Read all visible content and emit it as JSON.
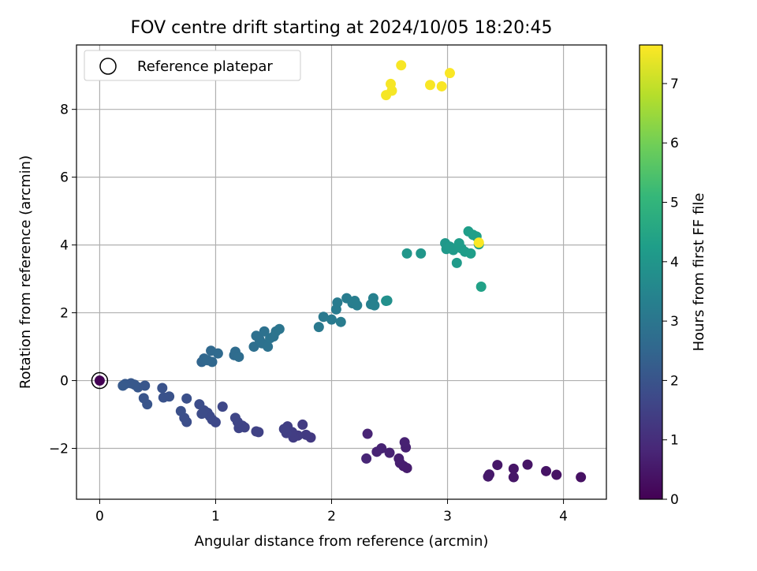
{
  "chart_data": {
    "type": "scatter",
    "title": "FOV centre drift starting at 2024/10/05 18:20:45",
    "xlabel": "Angular distance from reference (arcmin)",
    "ylabel": "Rotation from reference (arcmin)",
    "xlim": [
      -0.2,
      4.37
    ],
    "ylim": [
      -3.5,
      9.9
    ],
    "xticks": [
      0,
      1,
      2,
      3,
      4
    ],
    "yticks": [
      -2,
      0,
      2,
      4,
      6,
      8
    ],
    "grid": true,
    "legend": {
      "label": "Reference platepar",
      "placement": "top-left",
      "marker": "open-circle"
    },
    "reference_point": {
      "x": 0,
      "y": 0,
      "hours": 0
    },
    "colorbar": {
      "label": "Hours from first FF file",
      "range": [
        0,
        7.65
      ],
      "ticks": [
        0,
        1,
        2,
        3,
        4,
        5,
        6,
        7
      ],
      "colormap": [
        "#440154",
        "#482878",
        "#3e4989",
        "#31688e",
        "#26828e",
        "#1f9e89",
        "#35b779",
        "#6ece58",
        "#b5de2b",
        "#fde725"
      ]
    },
    "points": [
      {
        "x": 4.15,
        "y": -2.85,
        "h": 0.35
      },
      {
        "x": 3.94,
        "y": -2.78,
        "h": 0.38
      },
      {
        "x": 3.85,
        "y": -2.67,
        "h": 0.4
      },
      {
        "x": 3.69,
        "y": -2.48,
        "h": 0.42
      },
      {
        "x": 3.57,
        "y": -2.6,
        "h": 0.44
      },
      {
        "x": 3.57,
        "y": -2.85,
        "h": 0.46
      },
      {
        "x": 3.43,
        "y": -2.49,
        "h": 0.48
      },
      {
        "x": 3.36,
        "y": -2.77,
        "h": 0.5
      },
      {
        "x": 3.35,
        "y": -2.83,
        "h": 0.52
      },
      {
        "x": 2.65,
        "y": -2.58,
        "h": 0.6
      },
      {
        "x": 2.62,
        "y": -2.52,
        "h": 0.62
      },
      {
        "x": 2.59,
        "y": -2.43,
        "h": 0.64
      },
      {
        "x": 2.58,
        "y": -2.3,
        "h": 0.66
      },
      {
        "x": 2.64,
        "y": -1.97,
        "h": 0.68
      },
      {
        "x": 2.63,
        "y": -1.82,
        "h": 0.7
      },
      {
        "x": 2.5,
        "y": -2.13,
        "h": 0.72
      },
      {
        "x": 2.43,
        "y": -2.0,
        "h": 0.74
      },
      {
        "x": 2.39,
        "y": -2.1,
        "h": 0.76
      },
      {
        "x": 2.31,
        "y": -1.57,
        "h": 0.78
      },
      {
        "x": 2.3,
        "y": -2.3,
        "h": 0.8
      },
      {
        "x": 1.82,
        "y": -1.68,
        "h": 1.3
      },
      {
        "x": 1.78,
        "y": -1.6,
        "h": 1.32
      },
      {
        "x": 1.75,
        "y": -1.3,
        "h": 1.34
      },
      {
        "x": 1.71,
        "y": -1.62,
        "h": 1.36
      },
      {
        "x": 1.67,
        "y": -1.68,
        "h": 1.38
      },
      {
        "x": 1.66,
        "y": -1.52,
        "h": 1.4
      },
      {
        "x": 1.62,
        "y": -1.35,
        "h": 1.42
      },
      {
        "x": 1.61,
        "y": -1.55,
        "h": 1.44
      },
      {
        "x": 1.59,
        "y": -1.43,
        "h": 1.46
      },
      {
        "x": 1.37,
        "y": -1.52,
        "h": 1.5
      },
      {
        "x": 1.35,
        "y": -1.5,
        "h": 1.52
      },
      {
        "x": 1.25,
        "y": -1.38,
        "h": 1.54
      },
      {
        "x": 1.23,
        "y": -1.33,
        "h": 1.56
      },
      {
        "x": 1.2,
        "y": -1.4,
        "h": 1.58
      },
      {
        "x": 1.19,
        "y": -1.22,
        "h": 1.6
      },
      {
        "x": 1.17,
        "y": -1.1,
        "h": 1.62
      },
      {
        "x": 1.06,
        "y": -0.77,
        "h": 1.66
      },
      {
        "x": 1.0,
        "y": -1.23,
        "h": 1.68
      },
      {
        "x": 0.97,
        "y": -1.15,
        "h": 1.7
      },
      {
        "x": 0.95,
        "y": -1.05,
        "h": 1.72
      },
      {
        "x": 0.93,
        "y": -0.95,
        "h": 1.74
      },
      {
        "x": 0.9,
        "y": -0.88,
        "h": 1.76
      },
      {
        "x": 0.88,
        "y": -0.98,
        "h": 1.78
      },
      {
        "x": 0.86,
        "y": -0.7,
        "h": 1.8
      },
      {
        "x": 0.75,
        "y": -1.22,
        "h": 1.84
      },
      {
        "x": 0.73,
        "y": -1.1,
        "h": 1.86
      },
      {
        "x": 0.7,
        "y": -0.9,
        "h": 1.88
      },
      {
        "x": 0.75,
        "y": -0.53,
        "h": 1.9
      },
      {
        "x": 0.6,
        "y": -0.47,
        "h": 1.94
      },
      {
        "x": 0.55,
        "y": -0.5,
        "h": 1.96
      },
      {
        "x": 0.54,
        "y": -0.22,
        "h": 1.98
      },
      {
        "x": 0.41,
        "y": -0.7,
        "h": 2.02
      },
      {
        "x": 0.38,
        "y": -0.52,
        "h": 2.04
      },
      {
        "x": 0.39,
        "y": -0.15,
        "h": 2.06
      },
      {
        "x": 0.33,
        "y": -0.2,
        "h": 2.08
      },
      {
        "x": 0.3,
        "y": -0.12,
        "h": 2.1
      },
      {
        "x": 0.27,
        "y": -0.08,
        "h": 2.12
      },
      {
        "x": 0.22,
        "y": -0.1,
        "h": 2.14
      },
      {
        "x": 0.2,
        "y": -0.15,
        "h": 2.16
      },
      {
        "x": 0.88,
        "y": 0.55,
        "h": 2.5
      },
      {
        "x": 0.9,
        "y": 0.65,
        "h": 2.52
      },
      {
        "x": 0.93,
        "y": 0.6,
        "h": 2.54
      },
      {
        "x": 0.97,
        "y": 0.55,
        "h": 2.56
      },
      {
        "x": 0.96,
        "y": 0.88,
        "h": 2.58
      },
      {
        "x": 1.02,
        "y": 0.8,
        "h": 2.6
      },
      {
        "x": 1.16,
        "y": 0.75,
        "h": 2.66
      },
      {
        "x": 1.17,
        "y": 0.85,
        "h": 2.68
      },
      {
        "x": 1.2,
        "y": 0.7,
        "h": 2.7
      },
      {
        "x": 1.33,
        "y": 1.0,
        "h": 2.78
      },
      {
        "x": 1.35,
        "y": 1.32,
        "h": 2.8
      },
      {
        "x": 1.38,
        "y": 1.2,
        "h": 2.82
      },
      {
        "x": 1.4,
        "y": 1.1,
        "h": 2.84
      },
      {
        "x": 1.42,
        "y": 1.45,
        "h": 2.86
      },
      {
        "x": 1.45,
        "y": 1.0,
        "h": 2.88
      },
      {
        "x": 1.47,
        "y": 1.25,
        "h": 2.9
      },
      {
        "x": 1.5,
        "y": 1.3,
        "h": 2.92
      },
      {
        "x": 1.52,
        "y": 1.45,
        "h": 2.94
      },
      {
        "x": 1.55,
        "y": 1.52,
        "h": 2.96
      },
      {
        "x": 1.89,
        "y": 1.58,
        "h": 3.1
      },
      {
        "x": 1.93,
        "y": 1.88,
        "h": 3.12
      },
      {
        "x": 2.0,
        "y": 1.8,
        "h": 3.14
      },
      {
        "x": 2.04,
        "y": 2.1,
        "h": 3.16
      },
      {
        "x": 2.05,
        "y": 2.3,
        "h": 3.18
      },
      {
        "x": 2.08,
        "y": 1.73,
        "h": 3.2
      },
      {
        "x": 2.13,
        "y": 2.43,
        "h": 3.22
      },
      {
        "x": 2.18,
        "y": 2.28,
        "h": 3.24
      },
      {
        "x": 2.2,
        "y": 2.35,
        "h": 3.26
      },
      {
        "x": 2.22,
        "y": 2.22,
        "h": 3.28
      },
      {
        "x": 2.34,
        "y": 2.25,
        "h": 3.32
      },
      {
        "x": 2.36,
        "y": 2.43,
        "h": 3.34
      },
      {
        "x": 2.37,
        "y": 2.22,
        "h": 3.36
      },
      {
        "x": 2.47,
        "y": 2.35,
        "h": 3.8
      },
      {
        "x": 2.48,
        "y": 2.36,
        "h": 3.82
      },
      {
        "x": 2.65,
        "y": 3.75,
        "h": 4.0
      },
      {
        "x": 2.77,
        "y": 3.75,
        "h": 4.02
      },
      {
        "x": 2.98,
        "y": 4.05,
        "h": 4.08
      },
      {
        "x": 2.99,
        "y": 3.88,
        "h": 4.1
      },
      {
        "x": 3.02,
        "y": 3.95,
        "h": 4.12
      },
      {
        "x": 3.05,
        "y": 3.85,
        "h": 4.14
      },
      {
        "x": 3.08,
        "y": 3.47,
        "h": 4.16
      },
      {
        "x": 3.1,
        "y": 4.05,
        "h": 4.18
      },
      {
        "x": 3.12,
        "y": 3.9,
        "h": 4.2
      },
      {
        "x": 3.15,
        "y": 3.8,
        "h": 4.22
      },
      {
        "x": 3.18,
        "y": 4.4,
        "h": 4.24
      },
      {
        "x": 3.2,
        "y": 3.75,
        "h": 4.26
      },
      {
        "x": 3.22,
        "y": 4.3,
        "h": 4.28
      },
      {
        "x": 3.25,
        "y": 4.25,
        "h": 4.3
      },
      {
        "x": 3.27,
        "y": 4.02,
        "h": 4.32
      },
      {
        "x": 3.29,
        "y": 2.77,
        "h": 4.34
      },
      {
        "x": 2.47,
        "y": 8.42,
        "h": 7.55
      },
      {
        "x": 2.52,
        "y": 8.55,
        "h": 7.56
      },
      {
        "x": 2.51,
        "y": 8.75,
        "h": 7.57
      },
      {
        "x": 2.6,
        "y": 9.3,
        "h": 7.58
      },
      {
        "x": 2.85,
        "y": 8.72,
        "h": 7.59
      },
      {
        "x": 2.95,
        "y": 8.68,
        "h": 7.6
      },
      {
        "x": 3.02,
        "y": 9.07,
        "h": 7.61
      },
      {
        "x": 3.27,
        "y": 4.07,
        "h": 7.62
      }
    ]
  }
}
